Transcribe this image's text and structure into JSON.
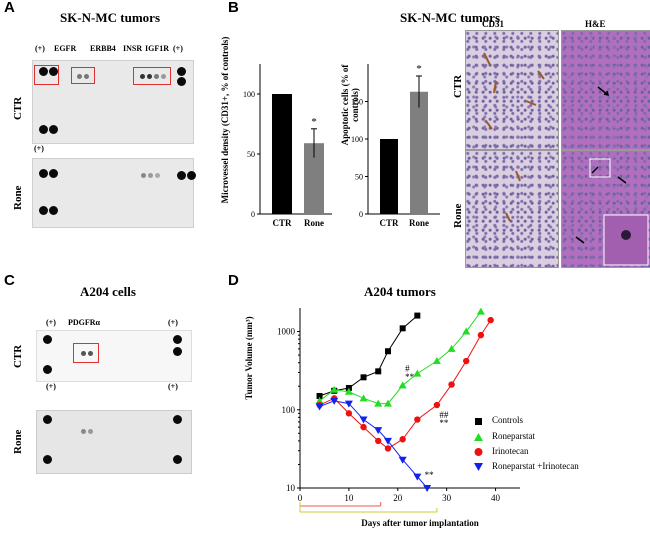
{
  "panels": {
    "A": {
      "label": "A",
      "title": "SK-N-MC tumors",
      "rows": [
        "CTR",
        "Rone"
      ],
      "top_labels": [
        "(+)",
        "EGFR",
        "ERBB4",
        "INSR",
        "IGF1R",
        "(+)"
      ],
      "bottom_label": "(+)"
    },
    "B": {
      "label": "B",
      "title": "SK-N-MC tumors",
      "microvessel": {
        "ylabel": "Microvessel density (CD31+, % of controls)",
        "sig": "*"
      },
      "apoptotic": {
        "ylabel": "Apoptotic cells (% of controls)",
        "sig": "*"
      },
      "micro_cols": [
        "CD31",
        "H&E"
      ],
      "micro_rows": [
        "CTR",
        "Rone"
      ]
    },
    "C": {
      "label": "C",
      "title": "A204 cells",
      "rows": [
        "CTR",
        "Rone"
      ],
      "top_labels": [
        "(+)",
        "PDGFRα",
        "(+)"
      ],
      "mid_labels": [
        "(+)",
        "(+)"
      ]
    },
    "D": {
      "label": "D",
      "title": "A204 tumors",
      "annot": {
        "ron_hash": "#",
        "ron_star": "**",
        "iri_hash": "##",
        "iri_star": "**",
        "combo_star": "**"
      }
    }
  },
  "chart_data": [
    {
      "type": "bar",
      "title": "",
      "ylabel": "Microvessel density (CD31+, % of controls)",
      "categories": [
        "CTR",
        "Rone"
      ],
      "values": [
        100,
        59
      ],
      "errors": [
        0,
        12
      ],
      "ylim": [
        0,
        125
      ],
      "yticks": [
        0,
        50,
        100
      ]
    },
    {
      "type": "bar",
      "title": "",
      "ylabel": "Apoptotic cells (% of controls)",
      "categories": [
        "CTR",
        "Rone"
      ],
      "values": [
        100,
        163
      ],
      "errors": [
        0,
        21
      ],
      "ylim": [
        0,
        200
      ],
      "yticks": [
        0,
        50,
        100,
        150
      ]
    },
    {
      "type": "line",
      "title": "A204 tumors",
      "xlabel": "Days after tumor implantation",
      "ylabel": "Tumor Volume (mm³)",
      "yscale": "log",
      "xlim": [
        0,
        45
      ],
      "ylim": [
        10,
        2000
      ],
      "xticks": [
        0,
        10,
        20,
        30,
        40
      ],
      "yticks": [
        10,
        100,
        1000
      ],
      "series": [
        {
          "name": "Controls",
          "marker": "square",
          "color": "#000000",
          "x": [
            4,
            7,
            10,
            13,
            16,
            18,
            21,
            24
          ],
          "y": [
            150,
            175,
            190,
            260,
            310,
            560,
            1100,
            1600
          ]
        },
        {
          "name": "Roneparstat",
          "marker": "triangle",
          "color": "#22dd22",
          "x": [
            4,
            7,
            10,
            13,
            16,
            18,
            21,
            24,
            28,
            31,
            34,
            37
          ],
          "y": [
            130,
            180,
            170,
            140,
            120,
            120,
            205,
            290,
            420,
            600,
            1000,
            1800
          ]
        },
        {
          "name": "Irinotecan",
          "marker": "circle",
          "color": "#ee1111",
          "x": [
            4,
            7,
            10,
            13,
            16,
            18,
            21,
            24,
            28,
            31,
            34,
            37,
            39
          ],
          "y": [
            115,
            140,
            90,
            60,
            40,
            32,
            42,
            75,
            115,
            210,
            420,
            900,
            1400
          ]
        },
        {
          "name": "Roneparstat +Irinotecan",
          "marker": "invtriangle",
          "color": "#1122ee",
          "x": [
            4,
            7,
            10,
            13,
            16,
            18,
            21,
            24,
            26
          ],
          "y": [
            110,
            130,
            120,
            75,
            55,
            40,
            23,
            14,
            10
          ]
        }
      ]
    }
  ]
}
